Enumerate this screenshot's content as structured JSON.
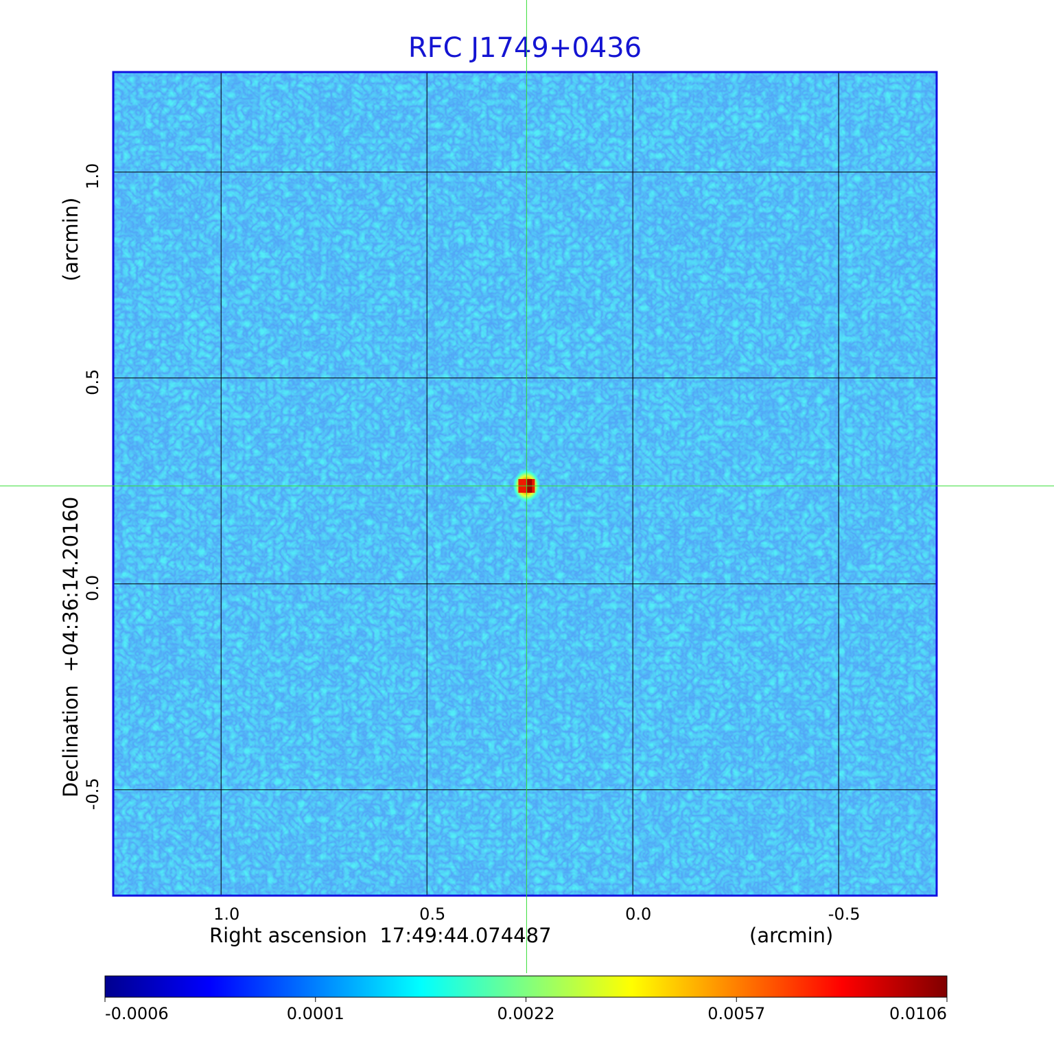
{
  "chart_data": {
    "type": "image",
    "title": "RFC J1749+0436",
    "xlabel": "Right ascension  17:49:44.074487",
    "xunit": "(arcmin)",
    "ylabel": "Declination  +04:36:14.20160",
    "yunit": "(arcmin)",
    "xlim": [
      1.262,
      -0.738
    ],
    "ylim": [
      -0.757,
      1.243
    ],
    "xticks": [
      {
        "value": 1,
        "label": "1.0"
      },
      {
        "value": 0.5,
        "label": "0.5"
      },
      {
        "value": 0,
        "label": "0.0"
      },
      {
        "value": -0.5,
        "label": "-0.5"
      }
    ],
    "yticks": [
      {
        "value": 1,
        "label": "1.0"
      },
      {
        "value": 0.5,
        "label": "0.5"
      },
      {
        "value": 0,
        "label": "0.0"
      },
      {
        "value": -0.5,
        "label": "-0.5"
      }
    ],
    "grid": true,
    "colormap": "jet",
    "colorbar_ticks": [
      -0.0006,
      0.0001,
      0.0022,
      0.0057,
      0.0106
    ],
    "source": {
      "x": 0.258,
      "y": 0.238,
      "value": 0.0106
    },
    "crosshair": {
      "x": 0.258,
      "y": 0.238,
      "color": "#33dd33"
    }
  }
}
